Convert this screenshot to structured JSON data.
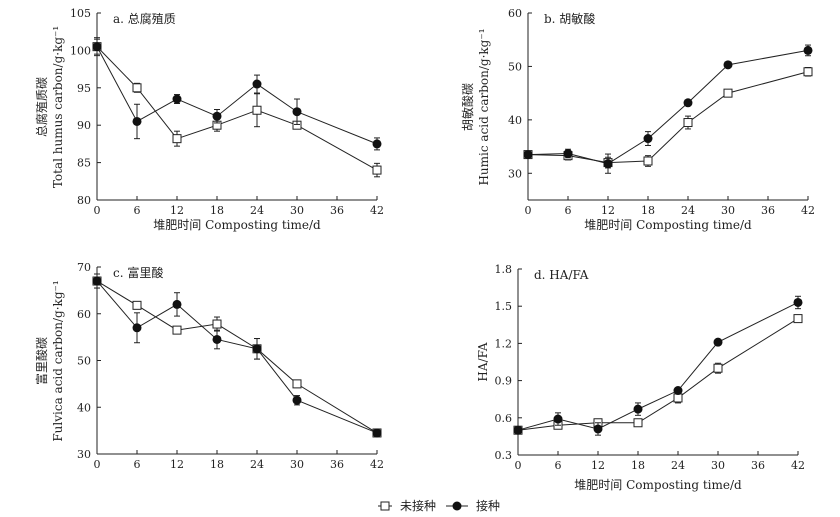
{
  "legend": {
    "uninoculated": "未接种",
    "inoculated": "接种"
  },
  "chart_data": [
    {
      "type": "line",
      "title": "a. 总腐殖质",
      "xlabel": "堆肥时间 Composting time/d",
      "ylabel_cn": "总腐殖质碳",
      "ylabel_en": "Total humus carbon/g·kg⁻¹",
      "xlim": [
        0,
        42
      ],
      "ylim": [
        80,
        105
      ],
      "xticks": [
        0,
        6,
        12,
        18,
        24,
        30,
        36,
        42
      ],
      "yticks": [
        80,
        85,
        90,
        95,
        100,
        105
      ],
      "x": [
        0,
        6,
        12,
        18,
        24,
        30,
        42
      ],
      "series": [
        {
          "name": "未接种",
          "marker": "open-square",
          "values": [
            100.5,
            95.0,
            88.2,
            90.0,
            92.0,
            90.0,
            84.0
          ],
          "errors": [
            1.0,
            0.6,
            1.0,
            0.8,
            2.2,
            0.4,
            0.9
          ]
        },
        {
          "name": "接种",
          "marker": "filled-circle",
          "values": [
            100.5,
            90.5,
            93.5,
            91.2,
            95.5,
            91.8,
            87.5
          ],
          "errors": [
            1.2,
            2.3,
            0.6,
            0.9,
            1.2,
            1.7,
            0.8
          ]
        }
      ]
    },
    {
      "type": "line",
      "title": "b. 胡敏酸",
      "xlabel": "堆肥时间 Composting time/d",
      "ylabel_cn": "胡敏酸碳",
      "ylabel_en": "Humic acid carbon/g·kg⁻¹",
      "xlim": [
        0,
        42
      ],
      "ylim": [
        25,
        60
      ],
      "xticks": [
        0,
        6,
        12,
        18,
        24,
        30,
        36,
        42
      ],
      "yticks": [
        30,
        40,
        50,
        60
      ],
      "x": [
        0,
        6,
        12,
        18,
        24,
        30,
        42
      ],
      "series": [
        {
          "name": "未接种",
          "marker": "open-square",
          "values": [
            33.5,
            33.3,
            32.0,
            32.3,
            39.5,
            45.0,
            49.0
          ],
          "errors": [
            0.5,
            0.8,
            1.0,
            1.0,
            1.2,
            0.3,
            0.8
          ]
        },
        {
          "name": "接种",
          "marker": "filled-circle",
          "values": [
            33.5,
            33.7,
            31.8,
            36.5,
            43.2,
            50.3,
            53.0
          ],
          "errors": [
            0.5,
            0.8,
            1.8,
            1.3,
            0.3,
            0.4,
            1.0
          ]
        }
      ]
    },
    {
      "type": "line",
      "title": "c. 富里酸",
      "xlabel": "",
      "ylabel_cn": "富里酸碳",
      "ylabel_en": "Fulvica acid carbon/g·kg⁻¹",
      "xlim": [
        0,
        42
      ],
      "ylim": [
        30,
        70
      ],
      "xticks": [
        0,
        6,
        12,
        18,
        24,
        30,
        36,
        42
      ],
      "yticks": [
        30,
        40,
        50,
        60,
        70
      ],
      "x": [
        0,
        6,
        12,
        18,
        24,
        30,
        42
      ],
      "series": [
        {
          "name": "未接种",
          "marker": "open-square",
          "values": [
            67.0,
            61.8,
            56.5,
            57.8,
            52.5,
            45.0,
            34.5
          ],
          "errors": [
            1.5,
            0.5,
            0.5,
            1.5,
            2.2,
            0.8,
            0.5
          ]
        },
        {
          "name": "接种",
          "marker": "filled-circle",
          "values": [
            67.0,
            57.0,
            62.0,
            54.5,
            52.5,
            41.5,
            34.5
          ],
          "errors": [
            1.5,
            3.2,
            2.5,
            2.0,
            2.2,
            1.0,
            0.5
          ]
        }
      ]
    },
    {
      "type": "line",
      "title": "d. HA/FA",
      "xlabel": "堆肥时间 Composting time/d",
      "ylabel_cn": "",
      "ylabel_en": "HA/FA",
      "xlim": [
        0,
        42
      ],
      "ylim": [
        0.3,
        1.8
      ],
      "xticks": [
        0,
        6,
        12,
        18,
        24,
        30,
        36,
        42
      ],
      "yticks": [
        0.3,
        0.6,
        0.9,
        1.2,
        1.5,
        1.8
      ],
      "x": [
        0,
        6,
        12,
        18,
        24,
        30,
        42
      ],
      "series": [
        {
          "name": "未接种",
          "marker": "open-square",
          "values": [
            0.5,
            0.54,
            0.56,
            0.56,
            0.76,
            1.0,
            1.4
          ],
          "errors": [
            0.02,
            0.02,
            0.02,
            0.02,
            0.04,
            0.04,
            0.02
          ]
        },
        {
          "name": "接种",
          "marker": "filled-circle",
          "values": [
            0.5,
            0.59,
            0.51,
            0.67,
            0.82,
            1.21,
            1.53
          ],
          "errors": [
            0.03,
            0.05,
            0.05,
            0.05,
            0.02,
            0.02,
            0.05
          ]
        }
      ]
    }
  ]
}
